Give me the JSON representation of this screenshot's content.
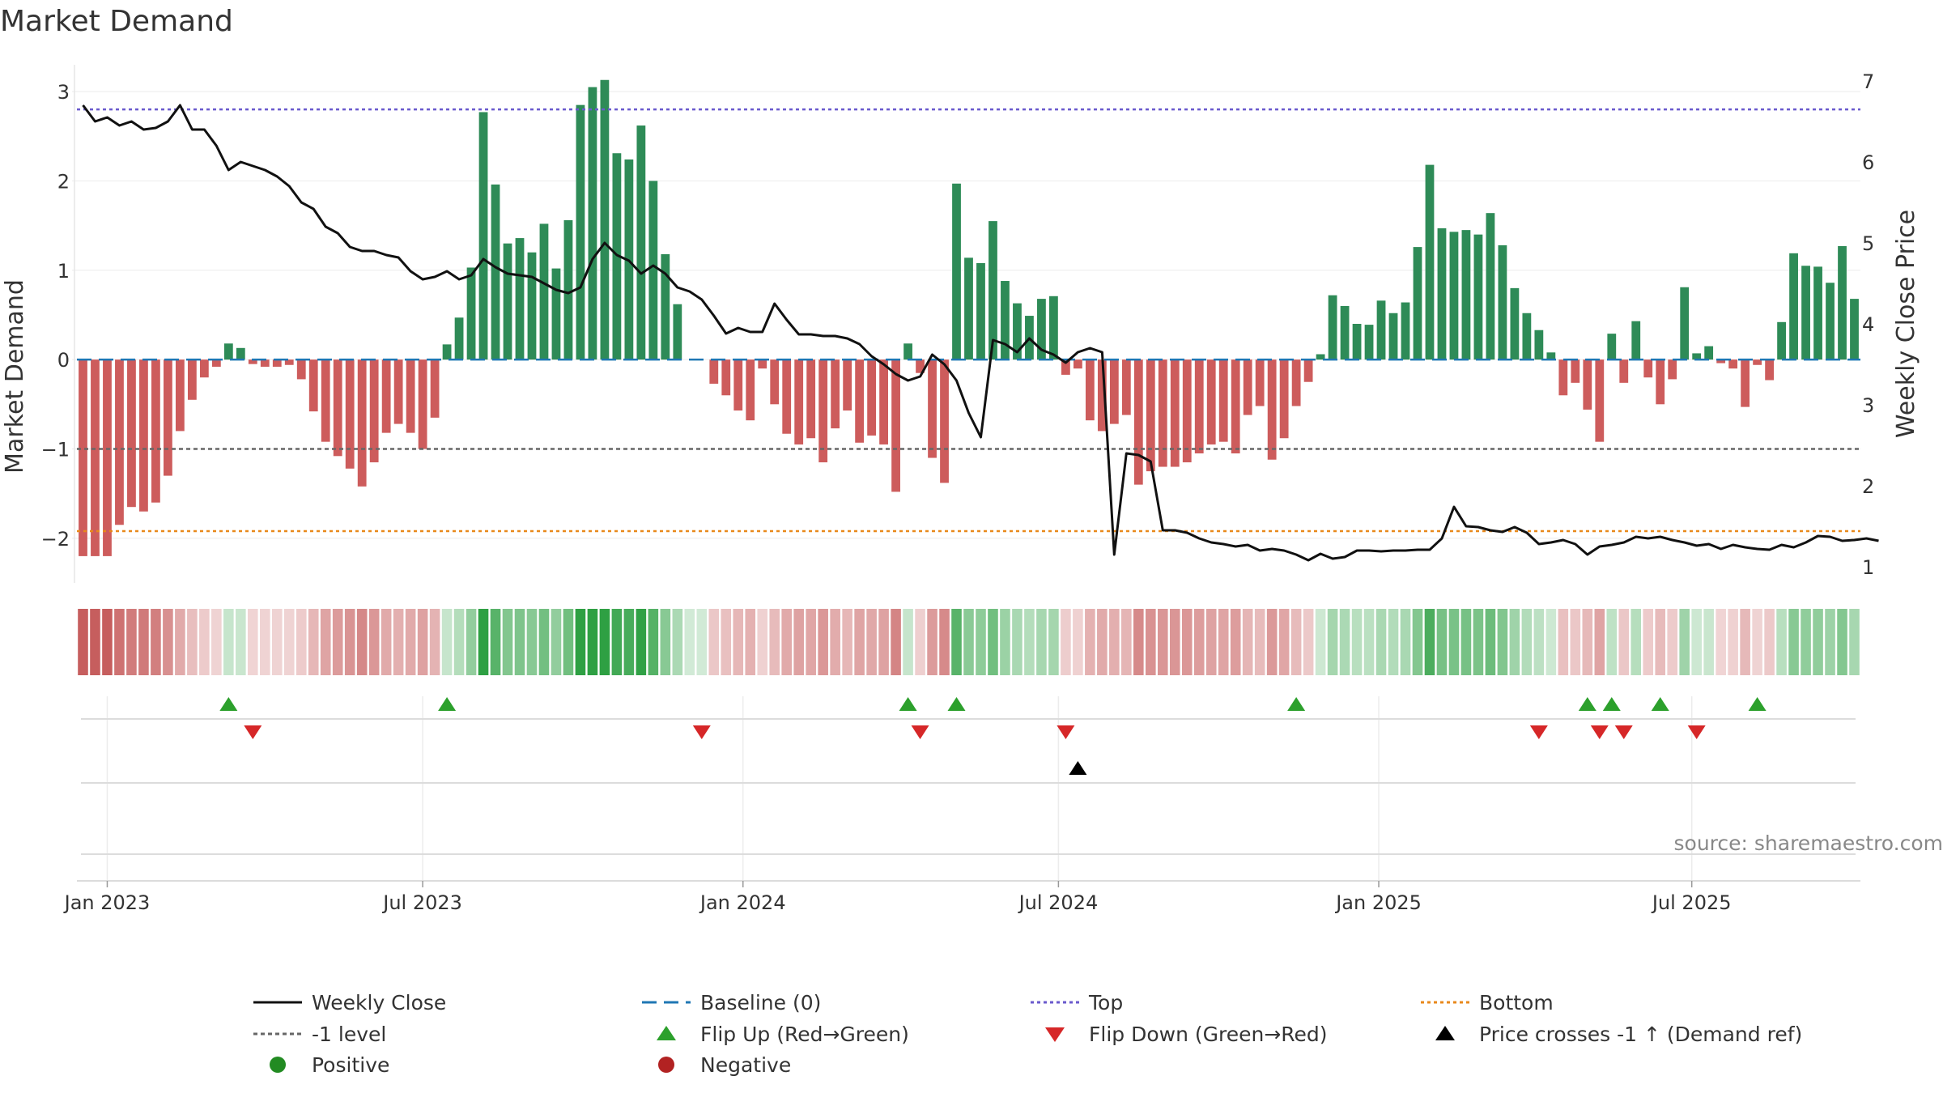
{
  "chart_data": {
    "type": "bar",
    "title": "Market Demand",
    "ylabel": "Market Demand",
    "y2label": "Weekly Close Price",
    "ylim": [
      -2.5,
      3.3
    ],
    "y2lim": [
      0.8,
      7.2
    ],
    "yticks": [
      3,
      2,
      1,
      0,
      -1,
      -2
    ],
    "yticklabels": [
      "3",
      "2",
      "1",
      "0",
      "−1",
      "−2"
    ],
    "y2ticks": [
      7,
      6,
      5,
      4,
      3,
      2,
      1
    ],
    "xlabels": [
      {
        "label": "Jan 2023",
        "week": 2
      },
      {
        "label": "Jul 2023",
        "week": 28
      },
      {
        "label": "Jan 2024",
        "week": 54.4
      },
      {
        "label": "Jul 2024",
        "week": 80.4
      },
      {
        "label": "Jan 2025",
        "week": 106.8
      },
      {
        "label": "Jul 2025",
        "week": 132.6
      }
    ],
    "reference_lines": {
      "top": 2.8,
      "bottom": -1.92,
      "minus_one": -1,
      "baseline": 0
    },
    "colors": {
      "positive": "#2e8b57",
      "negative": "#cd5c5c",
      "price": "#111111",
      "top": "#6a5acd",
      "bottom": "#e8891c",
      "baseline": "#1f77b4",
      "level": "#666666",
      "flip_up": "#2ca02c",
      "flip_down": "#d62728"
    },
    "demand": [
      -2.2,
      -2.2,
      -2.2,
      -1.85,
      -1.65,
      -1.7,
      -1.6,
      -1.3,
      -0.8,
      -0.45,
      -0.2,
      -0.08,
      0.18,
      0.13,
      -0.05,
      -0.08,
      -0.08,
      -0.06,
      -0.22,
      -0.58,
      -0.92,
      -1.08,
      -1.22,
      -1.42,
      -1.15,
      -0.82,
      -0.72,
      -0.82,
      -1.0,
      -0.65,
      0.17,
      0.47,
      1.03,
      2.77,
      1.96,
      1.3,
      1.36,
      1.2,
      1.52,
      1.02,
      1.56,
      2.85,
      3.05,
      3.13,
      2.31,
      2.24,
      2.62,
      2.0,
      1.18,
      0.62,
      0,
      0,
      -0.27,
      -0.4,
      -0.57,
      -0.68,
      -0.1,
      -0.5,
      -0.83,
      -0.95,
      -0.88,
      -1.15,
      -0.77,
      -0.57,
      -0.93,
      -0.85,
      -0.95,
      -1.48,
      0.18,
      -0.15,
      -1.1,
      -1.38,
      1.97,
      1.14,
      1.08,
      1.55,
      0.88,
      0.63,
      0.49,
      0.68,
      0.71,
      -0.17,
      -0.1,
      -0.68,
      -0.8,
      -0.72,
      -0.62,
      -1.4,
      -1.25,
      -1.2,
      -1.2,
      -1.15,
      -1.05,
      -0.95,
      -0.92,
      -1.05,
      -0.62,
      -0.52,
      -1.12,
      -0.88,
      -0.52,
      -0.25,
      0.06,
      0.72,
      0.6,
      0.4,
      0.39,
      0.66,
      0.52,
      0.64,
      1.26,
      2.18,
      1.47,
      1.43,
      1.45,
      1.4,
      1.64,
      1.28,
      0.8,
      0.52,
      0.33,
      0.08,
      -0.4,
      -0.26,
      -0.56,
      -0.92,
      0.29,
      -0.26,
      0.43,
      -0.2,
      -0.5,
      -0.22,
      0.81,
      0.07,
      0.15,
      -0.04,
      -0.1,
      -0.53,
      -0.06,
      -0.23,
      0.42,
      1.19,
      1.05,
      1.04,
      0.86,
      1.27,
      0.68
    ],
    "price": [
      6.7,
      6.5,
      6.55,
      6.45,
      6.5,
      6.4,
      6.42,
      6.5,
      6.7,
      6.4,
      6.4,
      6.2,
      5.9,
      6.0,
      5.95,
      5.9,
      5.82,
      5.7,
      5.5,
      5.42,
      5.2,
      5.12,
      4.95,
      4.9,
      4.9,
      4.85,
      4.82,
      4.65,
      4.55,
      4.58,
      4.65,
      4.55,
      4.6,
      4.8,
      4.7,
      4.62,
      4.6,
      4.58,
      4.5,
      4.42,
      4.38,
      4.45,
      4.8,
      5.0,
      4.85,
      4.78,
      4.62,
      4.72,
      4.62,
      4.45,
      4.4,
      4.3,
      4.1,
      3.88,
      3.95,
      3.9,
      3.9,
      4.25,
      4.05,
      3.87,
      3.87,
      3.85,
      3.85,
      3.82,
      3.75,
      3.6,
      3.5,
      3.38,
      3.3,
      3.35,
      3.62,
      3.5,
      3.3,
      2.9,
      2.6,
      3.8,
      3.75,
      3.65,
      3.82,
      3.68,
      3.62,
      3.52,
      3.65,
      3.7,
      3.65,
      1.15,
      2.4,
      2.38,
      2.3,
      1.45,
      1.45,
      1.42,
      1.35,
      1.3,
      1.28,
      1.25,
      1.27,
      1.2,
      1.22,
      1.2,
      1.15,
      1.08,
      1.16,
      1.1,
      1.12,
      1.2,
      1.2,
      1.19,
      1.2,
      1.2,
      1.21,
      1.21,
      1.35,
      1.74,
      1.5,
      1.49,
      1.45,
      1.43,
      1.49,
      1.42,
      1.28,
      1.3,
      1.33,
      1.28,
      1.15,
      1.25,
      1.27,
      1.3,
      1.37,
      1.35,
      1.37,
      1.33,
      1.3,
      1.26,
      1.28,
      1.22,
      1.27,
      1.24,
      1.22,
      1.21,
      1.27,
      1.24,
      1.3,
      1.38,
      1.37,
      1.32,
      1.33,
      1.35,
      1.32
    ],
    "flip_up_weeks": [
      12,
      30,
      68,
      72,
      100,
      124,
      126,
      130,
      138
    ],
    "flip_down_weeks": [
      14,
      51,
      69,
      81,
      120,
      125,
      127,
      133
    ],
    "demand_ref_weeks": [
      82
    ],
    "source": "source: sharemaestro.com",
    "legend": [
      {
        "label": "Weekly Close",
        "symbol": "line"
      },
      {
        "label": "Baseline (0)",
        "symbol": "dash"
      },
      {
        "label": "Top",
        "symbol": "dot-blue"
      },
      {
        "label": "Bottom",
        "symbol": "dot-orange"
      },
      {
        "label": "-1 level",
        "symbol": "dot-gray"
      },
      {
        "label": "Flip Up (Red→Green)",
        "symbol": "tri-up-green"
      },
      {
        "label": "Flip Down (Green→Red)",
        "symbol": "tri-down-red"
      },
      {
        "label": "Price crosses -1 ↑ (Demand ref)",
        "symbol": "tri-up-black"
      },
      {
        "label": "Positive",
        "symbol": "circle-green"
      },
      {
        "label": "Negative",
        "symbol": "circle-red"
      }
    ]
  }
}
